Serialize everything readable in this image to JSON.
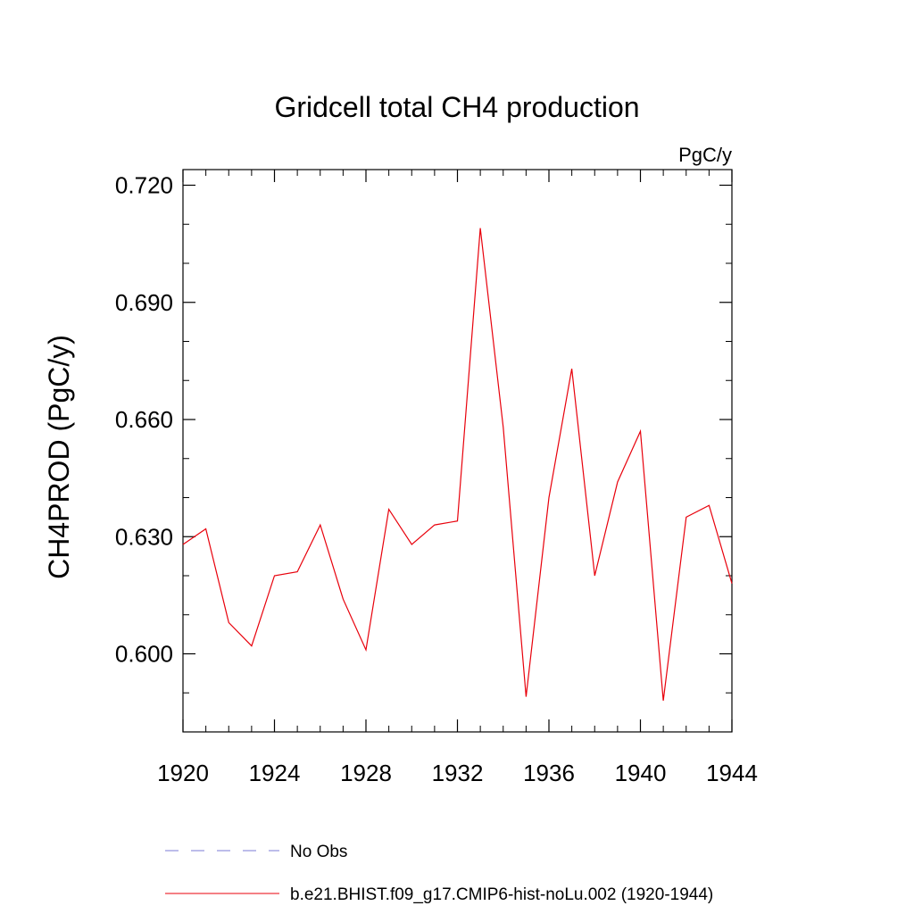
{
  "chart_data": {
    "type": "line",
    "title": "Gridcell total CH4 production",
    "units_label": "PgC/y",
    "ylabel": "CH4PROD  (PgC/y)",
    "xlabel": "",
    "xlim": [
      1920,
      1944
    ],
    "ylim": [
      0.58,
      0.724
    ],
    "x_ticks": [
      1920,
      1924,
      1928,
      1932,
      1936,
      1940,
      1944
    ],
    "x_tick_labels": [
      "1920",
      "1924",
      "1928",
      "1932",
      "1936",
      "1940",
      "1944"
    ],
    "y_ticks": [
      0.6,
      0.63,
      0.66,
      0.69,
      0.72
    ],
    "y_tick_labels": [
      "0.600",
      "0.630",
      "0.660",
      "0.690",
      "0.720"
    ],
    "grid": false,
    "legend_position": "bottom",
    "series": [
      {
        "name": "b.e21.BHIST.f09_g17.CMIP6-hist-noLu.002 (1920-1944)",
        "color": "#e8000b",
        "dash": "solid",
        "x": [
          1920,
          1921,
          1922,
          1923,
          1924,
          1925,
          1926,
          1927,
          1928,
          1929,
          1930,
          1931,
          1932,
          1933,
          1934,
          1935,
          1936,
          1937,
          1938,
          1939,
          1940,
          1941,
          1942,
          1943,
          1944
        ],
        "values": [
          0.628,
          0.632,
          0.608,
          0.602,
          0.62,
          0.621,
          0.633,
          0.614,
          0.601,
          0.637,
          0.628,
          0.633,
          0.634,
          0.709,
          0.658,
          0.589,
          0.64,
          0.673,
          0.62,
          0.644,
          0.657,
          0.588,
          0.635,
          0.638,
          0.618
        ]
      }
    ],
    "legend": [
      {
        "label": "No Obs",
        "color": "#7b7bd6",
        "dash": "dashed"
      },
      {
        "label": "b.e21.BHIST.f09_g17.CMIP6-hist-noLu.002 (1920-1944)",
        "color": "#e8000b",
        "dash": "solid"
      }
    ]
  }
}
